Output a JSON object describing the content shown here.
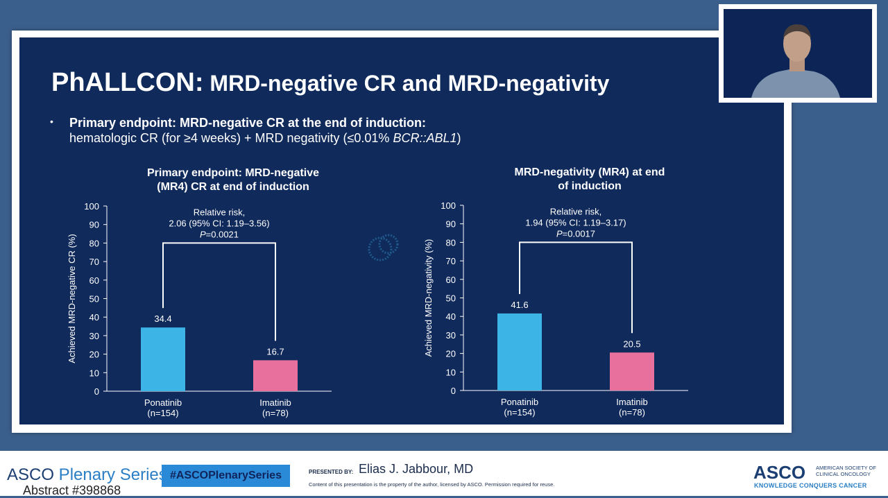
{
  "slide": {
    "title_part1": "PhALLCON:",
    "title_part2": " MRD-negative CR and MRD-negativity",
    "bullet_bold": "Primary endpoint: MRD-negative CR at the end of induction:",
    "bullet_plain": "hematologic CR (for ≥4 weeks) + MRD negativity (≤0.01% ",
    "bullet_italic": "BCR::ABL1",
    "bullet_close": ")"
  },
  "chart_data": [
    {
      "type": "bar",
      "title_line1": "Primary endpoint: MRD-negative",
      "title_line2": "(MR4) CR at end of induction",
      "ylabel": "Achieved MRD-negative CR (%)",
      "ylim": [
        0,
        100
      ],
      "yticks": [
        0,
        10,
        20,
        30,
        40,
        50,
        60,
        70,
        80,
        90,
        100
      ],
      "categories": [
        "Ponatinib",
        "Imatinib"
      ],
      "category_n": [
        "(n=154)",
        "(n=78)"
      ],
      "values": [
        34.4,
        16.7
      ],
      "value_labels": [
        "34.4",
        "16.7"
      ],
      "colors": [
        "#3cb4e6",
        "#e8709c"
      ],
      "annotation": [
        "Relative risk,",
        "2.06 (95% CI: 1.19–3.56)",
        "=0.0021"
      ],
      "annotation_italic": "P"
    },
    {
      "type": "bar",
      "title_line1": "MRD-negativity (MR4) at end",
      "title_line2": "of induction",
      "ylabel": "Achieved MRD-negativity (%)",
      "ylim": [
        0,
        100
      ],
      "yticks": [
        0,
        10,
        20,
        30,
        40,
        50,
        60,
        70,
        80,
        90,
        100
      ],
      "categories": [
        "Ponatinib",
        "Imatinib"
      ],
      "category_n": [
        "(n=154)",
        "(n=78)"
      ],
      "values": [
        41.6,
        20.5
      ],
      "value_labels": [
        "41.6",
        "20.5"
      ],
      "colors": [
        "#3cb4e6",
        "#e8709c"
      ],
      "annotation": [
        "Relative risk,",
        "1.94 (95% CI: 1.19–3.17)",
        "=0.0017"
      ],
      "annotation_italic": "P"
    }
  ],
  "footer": {
    "asco": "ASCO",
    "plenary_series": " Plenary Series",
    "abstract": "Abstract #398868",
    "hashtag": "#ASCOPlenarySeries",
    "presented_by": "PRESENTED BY:",
    "presenter": "Elias J. Jabbour, MD",
    "disclaimer": "Content of this presentation is the property of the author, licensed by ASCO. Permission required for reuse.",
    "logo": "ASCO",
    "society_line1": "AMERICAN SOCIETY OF",
    "society_line2": "CLINICAL ONCOLOGY",
    "tagline": "KNOWLEDGE CONQUERS CANCER"
  }
}
